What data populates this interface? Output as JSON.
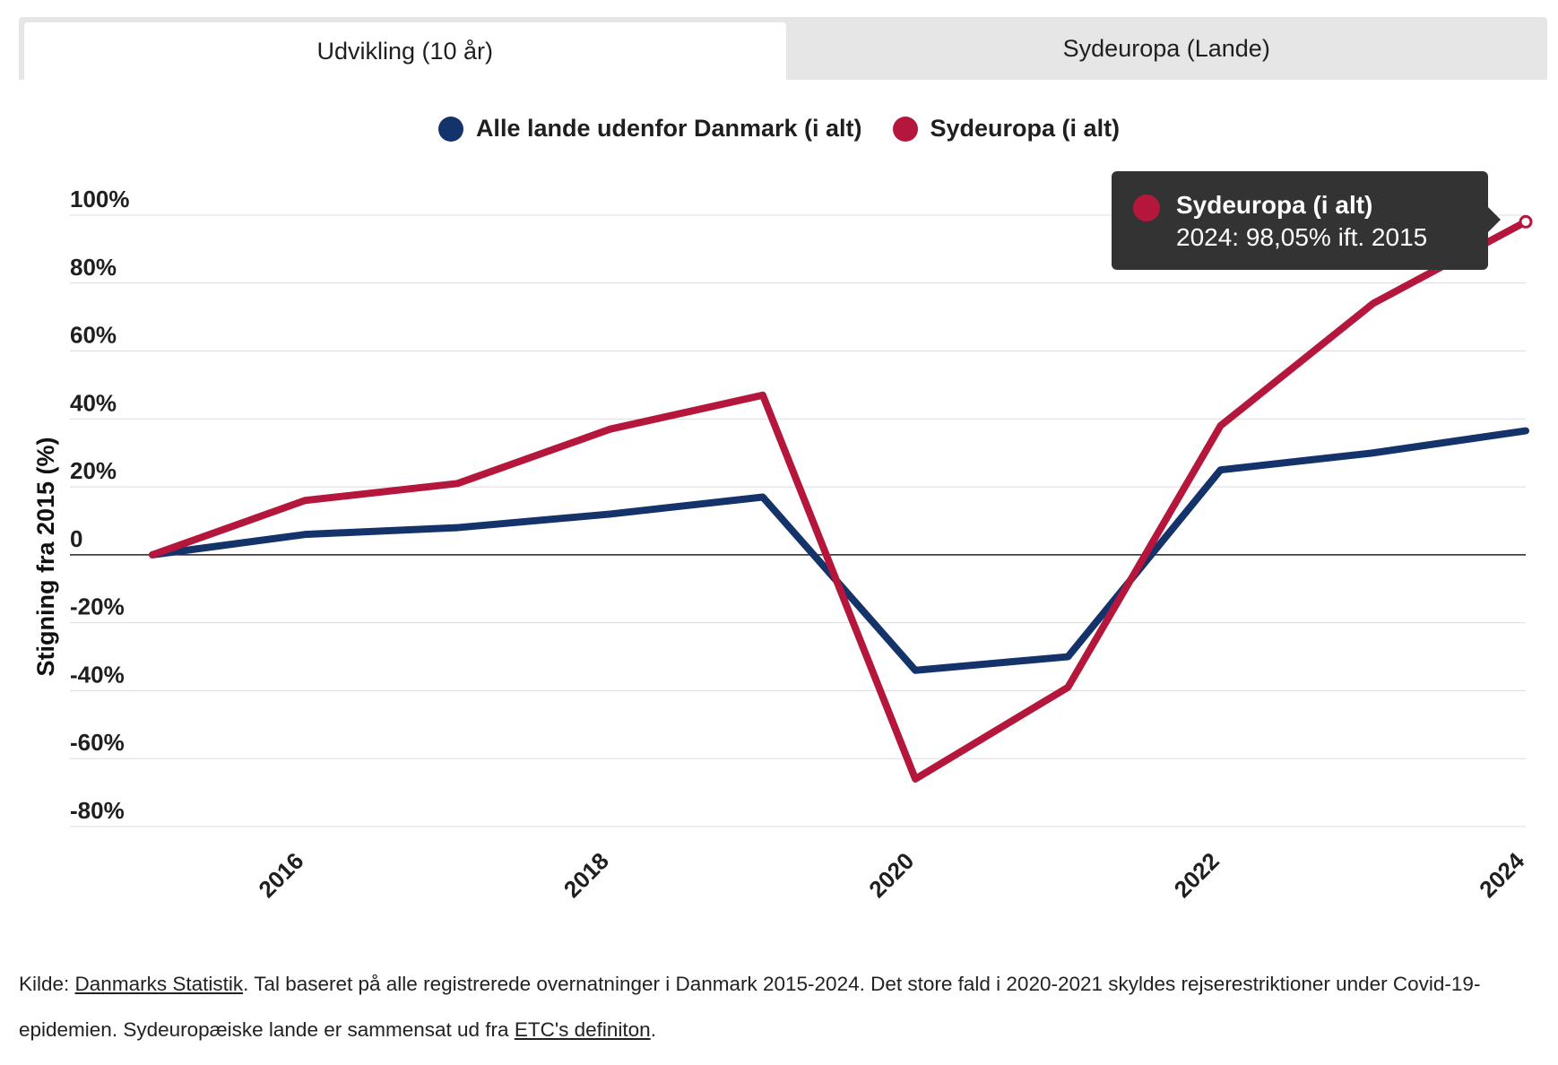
{
  "tabs": [
    {
      "label": "Udvikling (10 år)",
      "active": true
    },
    {
      "label": "Sydeuropa (Lande)",
      "active": false
    }
  ],
  "tooltip": {
    "title": "Sydeuropa (i alt)",
    "value": "2024: 98,05% ift. 2015",
    "color": "#b5173c"
  },
  "source": {
    "prefix": "Kilde: ",
    "link1": "Danmarks Statistik",
    "middle": ". Tal baseret på alle registrerede overnatninger i Danmark 2015-2024. Det store fald i 2020-2021 skyldes rejserestriktioner under Covid-19-epidemien. Sydeuropæiske lande er sammensat ud fra ",
    "link2": "ETC's definiton",
    "suffix": "."
  },
  "chart_data": {
    "type": "line",
    "x": [
      2015,
      2016,
      2017,
      2018,
      2019,
      2020,
      2021,
      2022,
      2023,
      2024
    ],
    "x_tick_labels": [
      "2016",
      "2018",
      "2020",
      "2022",
      "2024"
    ],
    "x_tick_values": [
      2016,
      2018,
      2020,
      2022,
      2024
    ],
    "ylabel": "Stigning fra 2015 (%)",
    "ylim": [
      -80,
      100
    ],
    "y_ticks": [
      100,
      80,
      60,
      40,
      20,
      0,
      -20,
      -40,
      -60,
      -80
    ],
    "y_tick_labels": [
      "100%",
      "80%",
      "60%",
      "40%",
      "20%",
      "0",
      "-20%",
      "-40%",
      "-60%",
      "-80%"
    ],
    "grid": true,
    "legend_position": "top-center",
    "series": [
      {
        "name": "Alle lande udenfor Danmark (i alt)",
        "color": "#15336b",
        "values": [
          0,
          6,
          8,
          12,
          17,
          -34,
          -30,
          25,
          30,
          36.5
        ]
      },
      {
        "name": "Sydeuropa (i alt)",
        "color": "#b5173c",
        "values": [
          0,
          16,
          21,
          37,
          47,
          -66,
          -39,
          38,
          74,
          98.05
        ]
      }
    ]
  }
}
